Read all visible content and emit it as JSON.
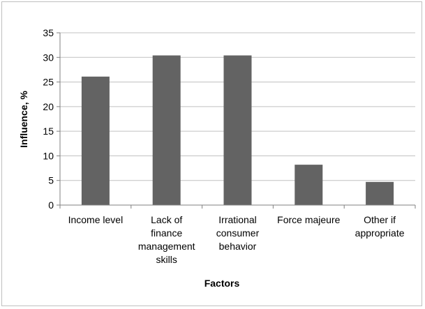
{
  "chart_data": {
    "type": "bar",
    "categories": [
      [
        "Income level"
      ],
      [
        "Lack of",
        "finance",
        "management",
        "skills"
      ],
      [
        "Irrational",
        "consumer",
        "behavior"
      ],
      [
        "Force majeure"
      ],
      [
        "Other if",
        "appropriate"
      ]
    ],
    "values": [
      26.1,
      30.4,
      30.4,
      8.2,
      4.7
    ],
    "xlabel": "Factors",
    "ylabel": "Influence, %",
    "ylim": [
      0,
      35
    ],
    "yticks": [
      0,
      5,
      10,
      15,
      20,
      25,
      30,
      35
    ],
    "grid": true,
    "legend": "none",
    "bar_color": "#636363",
    "grid_color": "#c0c0c0",
    "axis_color": "#808080"
  }
}
